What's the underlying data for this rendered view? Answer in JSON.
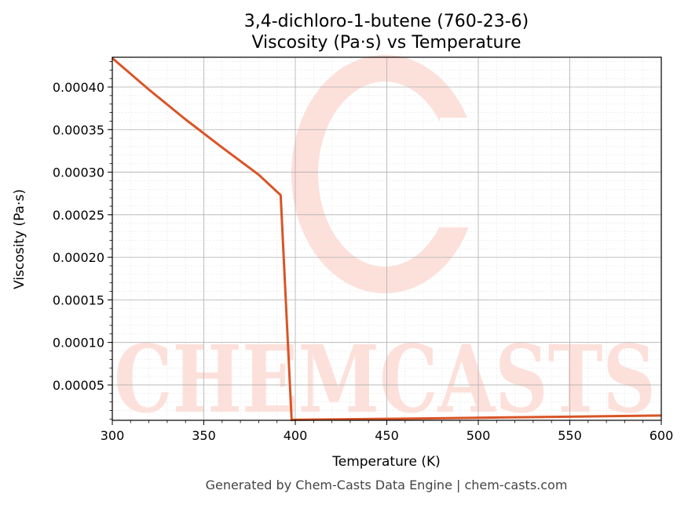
{
  "chart_data": {
    "type": "line",
    "title": "3,4-dichloro-1-butene (760-23-6)",
    "subtitle": "Viscosity (Pa·s) vs Temperature",
    "xlabel": "Temperature (K)",
    "ylabel": "Viscosity (Pa·s)",
    "xlim": [
      300,
      600
    ],
    "ylim": [
      8.5e-06,
      0.000435
    ],
    "xticks": [
      300,
      350,
      400,
      450,
      500,
      550,
      600
    ],
    "yticks": [
      5e-05,
      0.0001,
      0.00015,
      0.0002,
      0.00025,
      0.0003,
      0.00035,
      0.0004
    ],
    "ytick_labels": [
      "0.00005",
      "0.00010",
      "0.00015",
      "0.00020",
      "0.00025",
      "0.00030",
      "0.00035",
      "0.00040"
    ],
    "grid": true,
    "series": [
      {
        "color": "#d95426",
        "x": [
          300,
          320,
          340,
          360,
          380,
          392,
          398,
          400,
          450,
          500,
          550,
          600
        ],
        "y": [
          0.000434,
          0.000397,
          0.000362,
          0.000329,
          0.000297,
          0.000273,
          8.8e-06,
          9.2e-06,
          1.02e-05,
          1.15e-05,
          1.28e-05,
          1.41e-05
        ]
      }
    ],
    "footer": "Generated by Chem-Casts Data Engine | chem-casts.com",
    "watermark": "CHEMCASTS"
  }
}
